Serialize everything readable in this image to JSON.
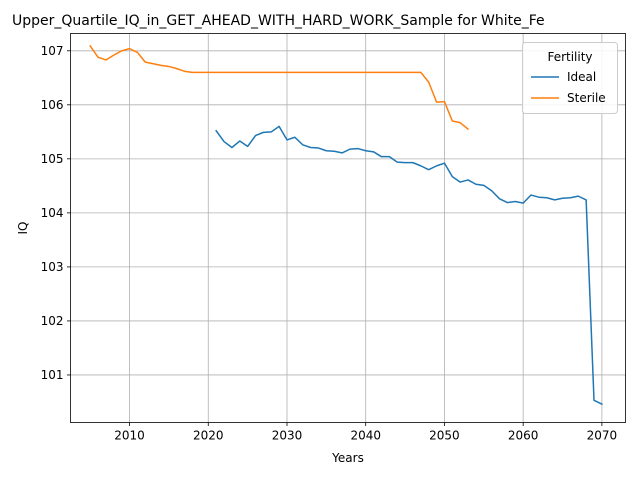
{
  "chart_data": {
    "type": "line",
    "title": "Upper_Quartile_IQ_in_GET_AHEAD_WITH_HARD_WORK_Sample for White_Fe",
    "xlabel": "Years",
    "ylabel": "IQ",
    "xlim": [
      2002.5,
      2073
    ],
    "ylim": [
      100.12,
      107.32
    ],
    "xticks": [
      2010,
      2020,
      2030,
      2040,
      2050,
      2060,
      2070
    ],
    "yticks": [
      101,
      102,
      103,
      104,
      105,
      106,
      107
    ],
    "grid": true,
    "legend": {
      "title": "Fertility",
      "position": "top-right"
    },
    "series": [
      {
        "name": "Ideal",
        "color": "#1f77b4",
        "x": [
          2021,
          2022,
          2023,
          2024,
          2025,
          2026,
          2027,
          2028,
          2029,
          2030,
          2031,
          2032,
          2033,
          2034,
          2035,
          2036,
          2037,
          2038,
          2039,
          2040,
          2041,
          2042,
          2043,
          2044,
          2045,
          2046,
          2047,
          2048,
          2049,
          2050,
          2051,
          2052,
          2053,
          2054,
          2055,
          2056,
          2057,
          2058,
          2059,
          2060,
          2061,
          2062,
          2063,
          2064,
          2065,
          2066,
          2067,
          2068,
          2069,
          2070
        ],
        "y": [
          105.52,
          105.32,
          105.21,
          105.33,
          105.23,
          105.43,
          105.49,
          105.5,
          105.6,
          105.35,
          105.4,
          105.26,
          105.21,
          105.2,
          105.15,
          105.14,
          105.11,
          105.18,
          105.19,
          105.15,
          105.13,
          105.04,
          105.04,
          104.94,
          104.93,
          104.93,
          104.87,
          104.8,
          104.87,
          104.92,
          104.67,
          104.57,
          104.61,
          104.53,
          104.51,
          104.41,
          104.26,
          104.19,
          104.21,
          104.18,
          104.33,
          104.29,
          104.28,
          104.24,
          104.27,
          104.28,
          104.31,
          104.24,
          100.53,
          100.46
        ]
      },
      {
        "name": "Sterile",
        "color": "#ff7f0e",
        "x": [
          2005,
          2006,
          2007,
          2008,
          2009,
          2010,
          2011,
          2012,
          2013,
          2014,
          2015,
          2016,
          2017,
          2018,
          2019,
          2020,
          2021,
          2022,
          2023,
          2024,
          2025,
          2026,
          2027,
          2028,
          2029,
          2030,
          2031,
          2032,
          2033,
          2034,
          2035,
          2036,
          2037,
          2038,
          2039,
          2040,
          2041,
          2042,
          2043,
          2044,
          2045,
          2046,
          2047,
          2048,
          2049,
          2050,
          2051,
          2052,
          2053
        ],
        "y": [
          107.09,
          106.88,
          106.83,
          106.92,
          107.0,
          107.04,
          106.97,
          106.79,
          106.76,
          106.73,
          106.71,
          106.67,
          106.62,
          106.6,
          106.6,
          106.6,
          106.6,
          106.6,
          106.6,
          106.6,
          106.6,
          106.6,
          106.6,
          106.6,
          106.6,
          106.6,
          106.6,
          106.6,
          106.6,
          106.6,
          106.6,
          106.6,
          106.6,
          106.6,
          106.6,
          106.6,
          106.6,
          106.6,
          106.6,
          106.6,
          106.6,
          106.6,
          106.6,
          106.42,
          106.05,
          106.06,
          105.7,
          105.67,
          105.55
        ]
      }
    ]
  }
}
